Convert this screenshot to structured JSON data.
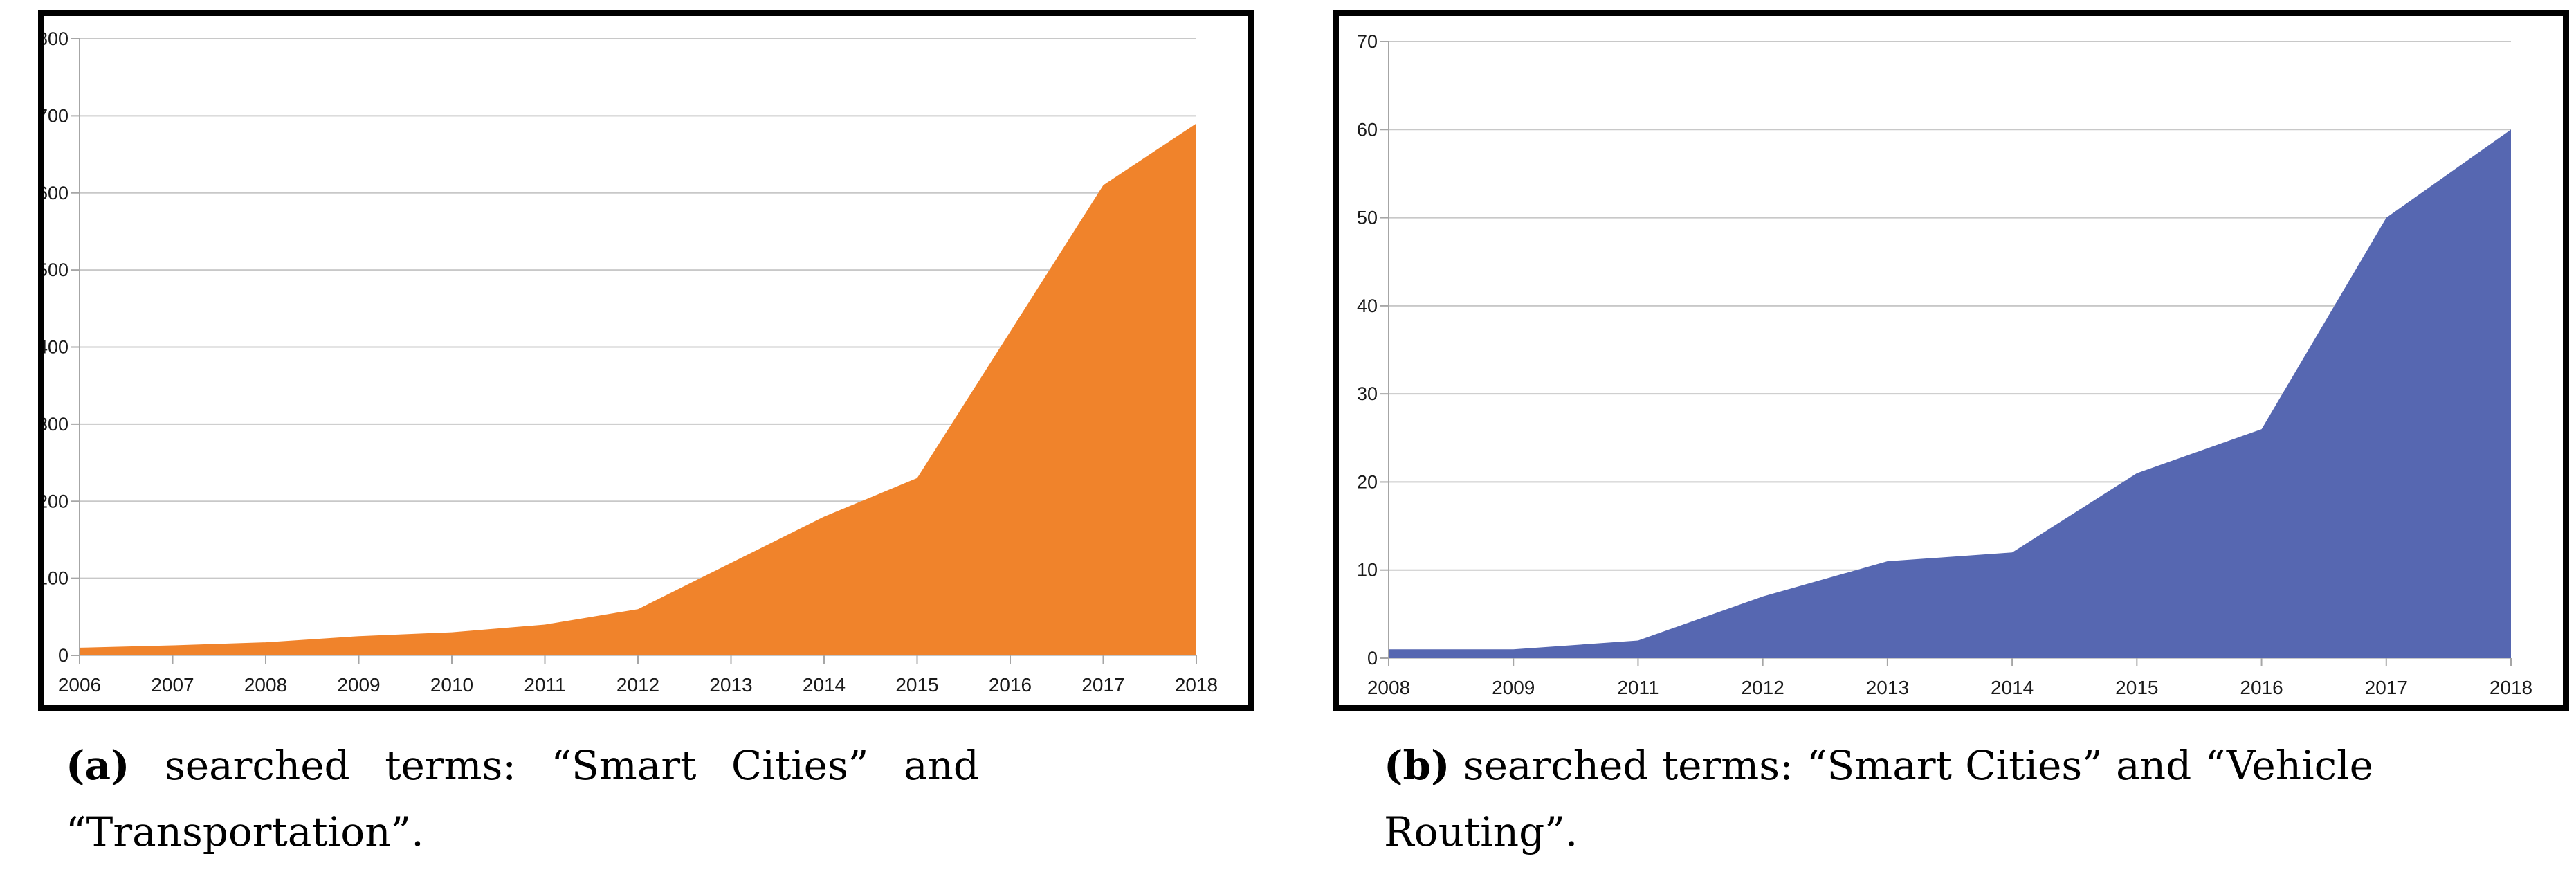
{
  "figure": {
    "caption_a": {
      "prefix": "(a)",
      "text": " searched terms: “Smart Cities” and “Transportation”."
    },
    "caption_b": {
      "prefix": "(b)",
      "text": " searched terms: “Smart Cities” and “Vehicle Routing”."
    }
  },
  "colors": {
    "area_a": "#F0832B",
    "area_b": "#5667B1",
    "gridline": "#C8C8C8",
    "axis": "#A6A6A6",
    "tick_label": "#1A1A1A",
    "panel_border": "#000000",
    "background": "#FFFFFF"
  },
  "chart_data": [
    {
      "type": "area",
      "panel": "a",
      "title": "",
      "xlabel": "",
      "ylabel": "",
      "categories": [
        "2006",
        "2007",
        "2008",
        "2009",
        "2010",
        "2011",
        "2012",
        "2013",
        "2014",
        "2015",
        "2016",
        "2017",
        "2018"
      ],
      "values": [
        10,
        13,
        17,
        25,
        30,
        40,
        60,
        120,
        180,
        230,
        420,
        610,
        690
      ],
      "ylim": [
        0,
        800
      ],
      "ytick_step": 100,
      "fill": "#F0832B",
      "grid": true,
      "legend": "none"
    },
    {
      "type": "area",
      "panel": "b",
      "title": "",
      "xlabel": "",
      "ylabel": "",
      "categories": [
        "2008",
        "2009",
        "2011",
        "2012",
        "2013",
        "2014",
        "2015",
        "2016",
        "2017",
        "2018"
      ],
      "values": [
        1,
        1,
        2,
        7,
        11,
        12,
        21,
        26,
        50,
        60
      ],
      "ylim": [
        0,
        70
      ],
      "ytick_step": 10,
      "fill": "#5667B1",
      "grid": true,
      "legend": "none"
    }
  ]
}
